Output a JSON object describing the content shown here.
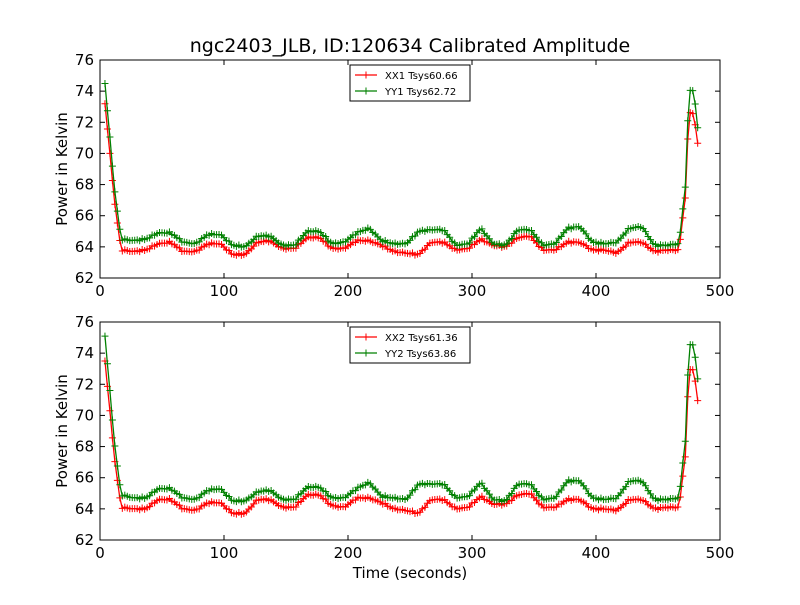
{
  "chart_data": [
    {
      "type": "line",
      "title": "ngc2403_JLB, ID:120634 Calibrated Amplitude",
      "xlabel": "",
      "ylabel": "Power in Kelvin",
      "xlim": [
        0,
        500
      ],
      "ylim": [
        62,
        76
      ],
      "xticks": [
        "0",
        "100",
        "200",
        "300",
        "400",
        "500"
      ],
      "yticks": [
        "62",
        "64",
        "66",
        "68",
        "70",
        "72",
        "74",
        "76"
      ],
      "grid": false,
      "legend_position": "top-center",
      "series": [
        {
          "name": "XX1 Tsys60.66",
          "color": "#ff0000",
          "levels": [
            [
              4,
              73.2
            ],
            [
              12,
              66.7
            ],
            [
              17,
              63.8
            ],
            [
              27,
              63.7
            ],
            [
              37,
              63.8
            ],
            [
              47,
              64.2
            ],
            [
              57,
              64.3
            ],
            [
              67,
              63.7
            ],
            [
              77,
              63.7
            ],
            [
              87,
              64.2
            ],
            [
              97,
              64.2
            ],
            [
              107,
              63.5
            ],
            [
              117,
              63.5
            ],
            [
              127,
              64.3
            ],
            [
              137,
              64.4
            ],
            [
              147,
              63.9
            ],
            [
              157,
              63.9
            ],
            [
              167,
              64.6
            ],
            [
              177,
              64.6
            ],
            [
              187,
              63.9
            ],
            [
              197,
              63.9
            ],
            [
              207,
              64.4
            ],
            [
              217,
              64.4
            ],
            [
              227,
              64.1
            ],
            [
              237,
              63.7
            ],
            [
              247,
              63.6
            ],
            [
              257,
              63.5
            ],
            [
              267,
              64.3
            ],
            [
              277,
              64.3
            ],
            [
              287,
              63.8
            ],
            [
              297,
              63.9
            ],
            [
              307,
              64.5
            ],
            [
              317,
              64.1
            ],
            [
              327,
              64.0
            ],
            [
              337,
              64.6
            ],
            [
              347,
              64.7
            ],
            [
              357,
              63.8
            ],
            [
              367,
              63.8
            ],
            [
              377,
              64.3
            ],
            [
              387,
              64.3
            ],
            [
              397,
              63.8
            ],
            [
              407,
              63.8
            ],
            [
              417,
              63.6
            ],
            [
              427,
              64.3
            ],
            [
              437,
              64.3
            ],
            [
              447,
              63.7
            ],
            [
              457,
              63.8
            ],
            [
              467,
              63.8
            ],
            [
              472,
              67.2
            ],
            [
              475,
              72.7
            ],
            [
              479,
              72.5
            ],
            [
              482,
              70.6
            ]
          ]
        },
        {
          "name": "YY1 Tsys62.72",
          "color": "#008000",
          "levels": [
            [
              4,
              74.5
            ],
            [
              12,
              67.5
            ],
            [
              17,
              64.5
            ],
            [
              27,
              64.4
            ],
            [
              37,
              64.5
            ],
            [
              47,
              64.9
            ],
            [
              57,
              64.9
            ],
            [
              67,
              64.3
            ],
            [
              77,
              64.2
            ],
            [
              87,
              64.8
            ],
            [
              97,
              64.8
            ],
            [
              107,
              64.1
            ],
            [
              117,
              64.0
            ],
            [
              127,
              64.7
            ],
            [
              137,
              64.7
            ],
            [
              147,
              64.1
            ],
            [
              157,
              64.1
            ],
            [
              167,
              65.0
            ],
            [
              177,
              65.0
            ],
            [
              187,
              64.2
            ],
            [
              197,
              64.3
            ],
            [
              207,
              64.9
            ],
            [
              217,
              65.2
            ],
            [
              227,
              64.4
            ],
            [
              237,
              64.2
            ],
            [
              247,
              64.2
            ],
            [
              257,
              65.0
            ],
            [
              267,
              65.1
            ],
            [
              277,
              65.1
            ],
            [
              287,
              64.1
            ],
            [
              297,
              64.2
            ],
            [
              307,
              65.2
            ],
            [
              317,
              64.2
            ],
            [
              327,
              64.1
            ],
            [
              337,
              65.1
            ],
            [
              347,
              65.1
            ],
            [
              357,
              64.1
            ],
            [
              367,
              64.2
            ],
            [
              377,
              65.2
            ],
            [
              387,
              65.3
            ],
            [
              397,
              64.3
            ],
            [
              407,
              64.2
            ],
            [
              417,
              64.3
            ],
            [
              427,
              65.2
            ],
            [
              437,
              65.3
            ],
            [
              447,
              64.1
            ],
            [
              457,
              64.1
            ],
            [
              467,
              64.2
            ],
            [
              472,
              67.9
            ],
            [
              475,
              74.1
            ],
            [
              479,
              74.0
            ],
            [
              482,
              71.6
            ]
          ]
        }
      ]
    },
    {
      "type": "line",
      "title": "",
      "xlabel": "Time (seconds)",
      "ylabel": "Power in Kelvin",
      "xlim": [
        0,
        500
      ],
      "ylim": [
        62,
        76
      ],
      "xticks": [
        "0",
        "100",
        "200",
        "300",
        "400",
        "500"
      ],
      "yticks": [
        "62",
        "64",
        "66",
        "68",
        "70",
        "72",
        "74",
        "76"
      ],
      "grid": false,
      "legend_position": "top-center",
      "series": [
        {
          "name": "XX2 Tsys61.36",
          "color": "#ff0000",
          "levels": [
            [
              4,
              73.5
            ],
            [
              12,
              67.0
            ],
            [
              17,
              64.1
            ],
            [
              27,
              64.0
            ],
            [
              37,
              64.0
            ],
            [
              47,
              64.6
            ],
            [
              57,
              64.6
            ],
            [
              67,
              64.0
            ],
            [
              77,
              63.9
            ],
            [
              87,
              64.4
            ],
            [
              97,
              64.4
            ],
            [
              107,
              63.7
            ],
            [
              117,
              63.7
            ],
            [
              127,
              64.6
            ],
            [
              137,
              64.6
            ],
            [
              147,
              64.1
            ],
            [
              157,
              64.1
            ],
            [
              167,
              64.9
            ],
            [
              177,
              64.9
            ],
            [
              187,
              64.2
            ],
            [
              197,
              64.1
            ],
            [
              207,
              64.7
            ],
            [
              217,
              64.7
            ],
            [
              227,
              64.4
            ],
            [
              237,
              64.0
            ],
            [
              247,
              63.9
            ],
            [
              257,
              63.7
            ],
            [
              267,
              64.6
            ],
            [
              277,
              64.6
            ],
            [
              287,
              64.0
            ],
            [
              297,
              64.1
            ],
            [
              307,
              64.8
            ],
            [
              317,
              64.3
            ],
            [
              327,
              64.3
            ],
            [
              337,
              64.9
            ],
            [
              347,
              65.0
            ],
            [
              357,
              64.1
            ],
            [
              367,
              64.1
            ],
            [
              377,
              64.6
            ],
            [
              387,
              64.6
            ],
            [
              397,
              64.0
            ],
            [
              407,
              64.0
            ],
            [
              417,
              63.9
            ],
            [
              427,
              64.6
            ],
            [
              437,
              64.6
            ],
            [
              447,
              64.0
            ],
            [
              457,
              64.1
            ],
            [
              467,
              64.1
            ],
            [
              472,
              67.4
            ],
            [
              475,
              73.0
            ],
            [
              479,
              72.9
            ],
            [
              482,
              70.9
            ]
          ]
        },
        {
          "name": "YY2 Tsys63.86",
          "color": "#008000",
          "levels": [
            [
              4,
              75.1
            ],
            [
              12,
              68.0
            ],
            [
              17,
              64.9
            ],
            [
              27,
              64.7
            ],
            [
              37,
              64.7
            ],
            [
              47,
              65.3
            ],
            [
              57,
              65.3
            ],
            [
              67,
              64.7
            ],
            [
              77,
              64.6
            ],
            [
              87,
              65.2
            ],
            [
              97,
              65.3
            ],
            [
              107,
              64.5
            ],
            [
              117,
              64.5
            ],
            [
              127,
              65.1
            ],
            [
              137,
              65.2
            ],
            [
              147,
              64.6
            ],
            [
              157,
              64.6
            ],
            [
              167,
              65.4
            ],
            [
              177,
              65.4
            ],
            [
              187,
              64.7
            ],
            [
              197,
              64.7
            ],
            [
              207,
              65.3
            ],
            [
              217,
              65.7
            ],
            [
              227,
              64.8
            ],
            [
              237,
              64.7
            ],
            [
              247,
              64.6
            ],
            [
              257,
              65.6
            ],
            [
              267,
              65.6
            ],
            [
              277,
              65.6
            ],
            [
              287,
              64.7
            ],
            [
              297,
              64.8
            ],
            [
              307,
              65.7
            ],
            [
              317,
              64.6
            ],
            [
              327,
              64.5
            ],
            [
              337,
              65.6
            ],
            [
              347,
              65.6
            ],
            [
              357,
              64.6
            ],
            [
              367,
              64.7
            ],
            [
              377,
              65.8
            ],
            [
              387,
              65.8
            ],
            [
              397,
              64.7
            ],
            [
              407,
              64.6
            ],
            [
              417,
              64.7
            ],
            [
              427,
              65.8
            ],
            [
              437,
              65.8
            ],
            [
              447,
              64.6
            ],
            [
              457,
              64.6
            ],
            [
              467,
              64.7
            ],
            [
              472,
              68.4
            ],
            [
              475,
              74.6
            ],
            [
              479,
              74.5
            ],
            [
              482,
              72.3
            ]
          ]
        }
      ]
    }
  ]
}
